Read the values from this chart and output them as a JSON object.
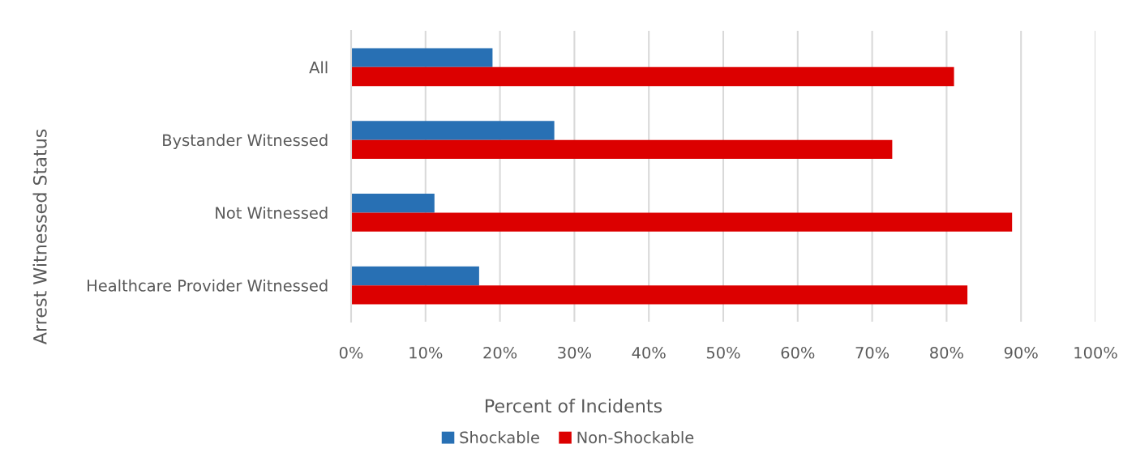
{
  "chart_data": {
    "type": "bar",
    "orientation": "horizontal",
    "categories": [
      "All",
      "Bystander Witnessed",
      "Not Witnessed",
      "Healthcare Provider Witnessed"
    ],
    "series": [
      {
        "name": "Shockable",
        "color": "#2870b4",
        "values": [
          19.0,
          27.3,
          11.2,
          17.2
        ]
      },
      {
        "name": "Non-Shockable",
        "color": "#dc0000",
        "values": [
          81.0,
          72.7,
          88.8,
          82.8
        ]
      }
    ],
    "xlim": [
      0,
      100
    ],
    "xticks": [
      {
        "value": 0,
        "label": "0%"
      },
      {
        "value": 10,
        "label": "10%"
      },
      {
        "value": 20,
        "label": "20%"
      },
      {
        "value": 30,
        "label": "30%"
      },
      {
        "value": 40,
        "label": "40%"
      },
      {
        "value": 50,
        "label": "50%"
      },
      {
        "value": 60,
        "label": "60%"
      },
      {
        "value": 70,
        "label": "70%"
      },
      {
        "value": 80,
        "label": "80%"
      },
      {
        "value": 90,
        "label": "90%"
      },
      {
        "value": 100,
        "label": "100%"
      }
    ],
    "xlabel": "Percent of Incidents",
    "ylabel": "Arrest Witnessed Status",
    "grid": "x",
    "legend": "bottom"
  }
}
